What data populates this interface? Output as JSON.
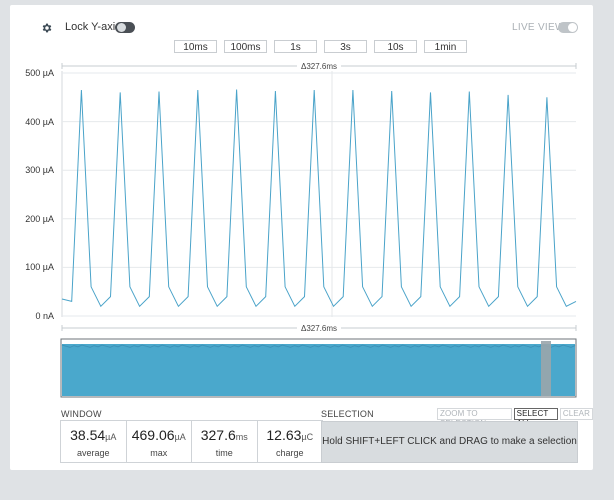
{
  "header": {
    "lock_label": "Lock Y-axis",
    "lock_on": false,
    "live_label": "LIVE VIEW",
    "live_on": false
  },
  "time_buttons": [
    "10ms",
    "100ms",
    "1s",
    "3s",
    "10s",
    "1min"
  ],
  "chart": {
    "delta_top": "Δ327.6ms",
    "delta_bottom": "Δ327.6ms",
    "y_ticks": [
      "500 µA",
      "400 µA",
      "300 µA",
      "200 µA",
      "100 µA",
      "0 nA"
    ]
  },
  "chart_data": {
    "type": "line",
    "series": [
      {
        "values_uA": [
          35,
          30,
          465,
          60,
          20,
          40,
          460,
          60,
          20,
          40,
          462,
          60,
          20,
          40,
          465,
          60,
          20,
          40,
          466,
          60,
          20,
          40,
          463,
          60,
          20,
          40,
          465,
          60,
          20,
          40,
          465,
          60,
          20,
          40,
          463,
          60,
          20,
          40,
          460,
          60,
          20,
          40,
          462,
          60,
          20,
          40,
          455,
          60,
          20,
          40,
          450,
          60,
          20,
          30
        ]
      }
    ],
    "ylim": [
      0,
      500
    ],
    "yticks": [
      0,
      100,
      200,
      300,
      400,
      500
    ],
    "ytick_labels": [
      "0 nA",
      "100 µA",
      "200 µA",
      "300 µA",
      "400 µA",
      "500 µA"
    ]
  },
  "window": {
    "title": "WINDOW",
    "stats": [
      {
        "value": "38.54",
        "unit": "µA",
        "label": "average"
      },
      {
        "value": "469.06",
        "unit": "µA",
        "label": "max"
      },
      {
        "value": "327.6",
        "unit": "ms",
        "label": "time"
      },
      {
        "value": "12.63",
        "unit": "µC",
        "label": "charge"
      }
    ]
  },
  "selection": {
    "title": "SELECTION",
    "zoom_label": "ZOOM TO SELECTION",
    "select_all_label": "SELECT ALL",
    "clear_label": "CLEAR",
    "hint": "Hold SHIFT+LEFT CLICK and DRAG to make a selection"
  },
  "colors": {
    "trace": "#4aa3c9",
    "overview_fill": "#4aa8cc",
    "background": "#dfe2e5"
  }
}
